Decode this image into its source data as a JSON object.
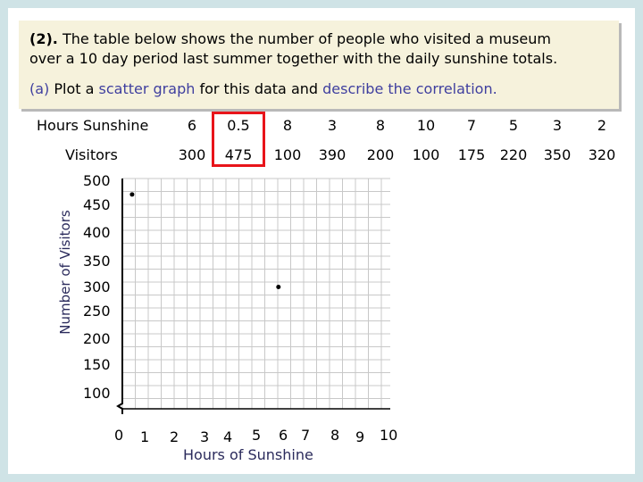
{
  "question": {
    "number": "(2).",
    "text_line1": "The table below shows the number of people who visited a museum",
    "text_line2": "over a 10 day period last summer together with the daily sunshine totals.",
    "part_label": "(a)",
    "part_plot": "Plot a",
    "part_scatter": "scatter graph",
    "part_mid": "for this data and",
    "part_describe": "describe the correlation."
  },
  "table": {
    "row1_header": "Hours Sunshine",
    "row2_header": "Visitors",
    "sunshine": [
      "6",
      "0.5",
      "8",
      "3",
      "8",
      "10",
      "7",
      "5",
      "3",
      "2"
    ],
    "visitors": [
      "300",
      "475",
      "100",
      "390",
      "200",
      "100",
      "175",
      "220",
      "350",
      "320"
    ]
  },
  "axes": {
    "y_title": "Number of Visitors",
    "x_title": "Hours of Sunshine",
    "y_ticks": [
      "500",
      "450",
      "400",
      "350",
      "300",
      "250",
      "200",
      "150",
      "100"
    ],
    "x_ticks": [
      "0",
      "1",
      "2",
      "3",
      "4",
      "5",
      "6",
      "7",
      "8",
      "9",
      "10"
    ]
  },
  "chart_data": {
    "type": "scatter",
    "xlabel": "Hours of Sunshine",
    "ylabel": "Number of Visitors",
    "xlim": [
      0,
      10
    ],
    "ylim": [
      100,
      500
    ],
    "points": [
      {
        "x": 0.5,
        "y": 475
      },
      {
        "x": 6,
        "y": 300
      }
    ]
  },
  "colors": {
    "highlight": "#e8141a",
    "accent_text": "#3f3f9f",
    "question_bg": "#f6f2dc"
  }
}
